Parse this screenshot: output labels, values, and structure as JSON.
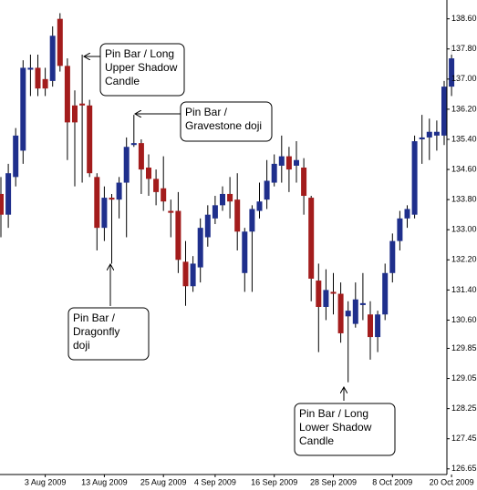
{
  "chart_data": {
    "type": "candlestick",
    "up_color": "#1f2f8c",
    "down_color": "#a31c1c",
    "categories": [
      null,
      null,
      null,
      null,
      null,
      null,
      "3 Aug 2009",
      null,
      null,
      null,
      null,
      null,
      null,
      null,
      "13 Aug 2009",
      null,
      null,
      null,
      null,
      null,
      null,
      null,
      "25 Aug 2009",
      null,
      null,
      null,
      null,
      null,
      null,
      "4 Sep 2009",
      null,
      null,
      null,
      null,
      null,
      null,
      null,
      "16 Sep 2009",
      null,
      null,
      null,
      null,
      null,
      null,
      null,
      "28 Sep 2009",
      null,
      null,
      null,
      null,
      null,
      null,
      null,
      "8 Oct 2009",
      null,
      null,
      null,
      null,
      null,
      null,
      null,
      "20 Oct 2009"
    ],
    "open": [
      133.95,
      133.4,
      134.4,
      135.1,
      137.25,
      137.3,
      137.0,
      136.95,
      138.6,
      137.35,
      136.3,
      136.35,
      136.3,
      134.4,
      133.05,
      133.85,
      133.8,
      134.25,
      135.25,
      135.3,
      134.65,
      134.35,
      134.1,
      133.5,
      133.5,
      132.15,
      131.5,
      132.0,
      132.8,
      133.3,
      133.65,
      133.95,
      133.8,
      131.85,
      132.95,
      133.5,
      133.8,
      134.25,
      134.7,
      134.95,
      134.7,
      134.65,
      133.85,
      131.65,
      130.95,
      131.35,
      131.3,
      130.7,
      130.5,
      131.0,
      130.75,
      130.15,
      130.75,
      131.85,
      132.7,
      133.3,
      133.4,
      135.4,
      135.45,
      135.5,
      135.5,
      136.8
    ],
    "high": [
      134.4,
      134.75,
      135.7,
      137.5,
      137.65,
      137.65,
      137.3,
      138.4,
      138.75,
      137.55,
      136.7,
      137.65,
      136.45,
      134.5,
      134.15,
      133.95,
      134.4,
      135.45,
      136.05,
      135.4,
      135.0,
      134.6,
      134.95,
      133.8,
      134.0,
      132.7,
      132.3,
      133.3,
      133.65,
      133.9,
      134.15,
      134.4,
      134.5,
      133.05,
      133.65,
      134.25,
      134.85,
      135.0,
      135.5,
      135.2,
      135.35,
      134.9,
      133.9,
      132.1,
      131.95,
      131.85,
      131.6,
      131.1,
      131.6,
      131.85,
      131.1,
      130.85,
      132.1,
      132.9,
      133.5,
      133.65,
      135.5,
      136.05,
      135.95,
      135.9,
      136.95,
      137.9
    ],
    "low": [
      132.8,
      133.05,
      134.15,
      134.75,
      136.55,
      136.55,
      136.55,
      136.8,
      137.2,
      134.85,
      134.15,
      134.25,
      134.4,
      132.45,
      132.7,
      132.1,
      133.3,
      132.8,
      135.2,
      133.95,
      133.9,
      133.65,
      133.5,
      132.8,
      131.85,
      130.98,
      131.35,
      131.6,
      132.55,
      133.15,
      133.5,
      133.3,
      132.45,
      131.35,
      131.35,
      133.3,
      133.55,
      134.15,
      134.25,
      134.0,
      134.25,
      133.4,
      131.1,
      129.75,
      130.6,
      130.75,
      130.0,
      128.95,
      130.4,
      130.6,
      129.55,
      129.75,
      130.6,
      131.6,
      132.45,
      133.05,
      133.3,
      134.75,
      134.85,
      135.1,
      135.25,
      136.55
    ],
    "close": [
      133.4,
      134.5,
      135.5,
      137.3,
      137.3,
      136.75,
      136.75,
      138.15,
      137.35,
      135.85,
      135.85,
      136.3,
      134.5,
      133.05,
      133.85,
      133.8,
      134.25,
      135.2,
      135.3,
      134.6,
      134.35,
      134.0,
      133.75,
      133.45,
      132.2,
      131.5,
      132.1,
      133.05,
      133.4,
      133.65,
      133.95,
      133.75,
      132.95,
      132.95,
      133.55,
      133.75,
      134.3,
      134.75,
      134.95,
      134.6,
      134.85,
      133.9,
      131.7,
      130.95,
      131.4,
      131.3,
      130.25,
      130.85,
      131.15,
      131.05,
      130.15,
      130.75,
      131.85,
      132.7,
      133.3,
      133.55,
      135.35,
      135.45,
      135.6,
      135.6,
      136.8,
      137.55
    ],
    "ylim": [
      126.5,
      139.1
    ],
    "yticks": [
      {
        "value": 138.6,
        "label": "138.60"
      },
      {
        "value": 137.8,
        "label": "137.80"
      },
      {
        "value": 137,
        "label": "137.00"
      },
      {
        "value": 136.2,
        "label": "136.20"
      },
      {
        "value": 135.4,
        "label": "135.40"
      },
      {
        "value": 134.6,
        "label": "134.60"
      },
      {
        "value": 133.8,
        "label": "133.80"
      },
      {
        "value": 133,
        "label": "133.00"
      },
      {
        "value": 132.2,
        "label": "132.20"
      },
      {
        "value": 131.4,
        "label": "131.40"
      },
      {
        "value": 130.6,
        "label": "130.60"
      },
      129.85,
      129.05,
      128.25,
      127.45,
      126.65
    ],
    "annotations": [
      {
        "lines": [
          "Pin Bar / Long",
          "Upper Shadow",
          "Candle"
        ]
      },
      {
        "lines": [
          "Pin Bar /",
          "Gravestone doji"
        ]
      },
      {
        "lines": [
          "Pin Bar /",
          "Dragonfly",
          "doji"
        ]
      },
      {
        "lines": [
          "Pin Bar / Long",
          "Lower Shadow",
          "Candle"
        ]
      }
    ]
  }
}
